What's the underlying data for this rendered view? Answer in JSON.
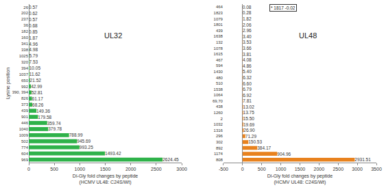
{
  "chart_data": [
    {
      "type": "bar",
      "orientation": "horizontal",
      "title": "UL32",
      "x_label": "Di-Gly fold changes by peptide\n(HCMV UL48: C24S/Wt)",
      "y_label": "Lysine position",
      "categories": [
        "26",
        "202",
        "237",
        "36",
        "182",
        "160",
        "341",
        "338",
        "1025",
        "320",
        "394",
        "1037",
        "650",
        "992",
        "390, 394",
        "826",
        "373",
        "439",
        "901",
        "446",
        "1040",
        "1009",
        "502",
        "774",
        "604",
        "969"
      ],
      "values": [
        0.57,
        0.62,
        0.57,
        0.68,
        0.85,
        1.87,
        4.96,
        4.98,
        5.79,
        7.53,
        10.05,
        11.62,
        21.52,
        42.99,
        52.81,
        61.17,
        68.26,
        149.36,
        179.58,
        359.74,
        379.78,
        788.99,
        945.69,
        993.25,
        1493.42,
        2624.45
      ],
      "value_labels": [
        "0.57",
        "0.62",
        "0.57",
        "0.68",
        "0.85",
        "1.87",
        "4.96",
        "4.98",
        "5.79",
        "7.53",
        "10.05",
        "11.62",
        "21.52",
        "42.99",
        "52.81",
        "61.17",
        "68.26",
        "149.36",
        "179.58",
        "359.74",
        "379.78",
        "788.99",
        "945.69",
        "993.25",
        "1493.42",
        "2624.45"
      ],
      "color": "#2fb24a",
      "xlim": [
        0,
        3000
      ],
      "xticks": [
        0,
        500,
        1000,
        1500,
        2000,
        2500,
        3000
      ],
      "data_labels": true,
      "grid": false
    },
    {
      "type": "bar",
      "orientation": "horizontal",
      "title": "UL48",
      "x_label": "Di-Gly fold changes by peptide\n(HCMV UL48: C24S/Wt)",
      "annotations": [
        "* 1817 -0.02"
      ],
      "categories": [
        "464",
        "1823",
        "1079",
        "1801",
        "439",
        "1638",
        "132",
        "1078",
        "1615",
        "467",
        "594",
        "1430",
        "480",
        "510",
        "1538",
        "1064",
        "69,70",
        "438",
        "1260",
        "2",
        "1032",
        "1316",
        "296",
        "302",
        "892",
        "1174",
        "808"
      ],
      "values": [
        0.08,
        0.28,
        1.82,
        2.06,
        2.96,
        3.4,
        3.53,
        3.66,
        3.81,
        4.08,
        4.86,
        5.4,
        6.32,
        6.6,
        6.79,
        6.92,
        7.81,
        13.02,
        13.75,
        15.5,
        19.69,
        26.9,
        71.29,
        150.53,
        384.17,
        904.96,
        2931.51
      ],
      "value_labels": [
        "0.08",
        "0.28",
        "1.82",
        "2.06",
        "2.96",
        "3.40",
        "3.53",
        "3.66",
        "3.81",
        "4.08",
        "4.86",
        "5.40",
        "6.32",
        "6.60",
        "6.79",
        "6.92",
        "7.81",
        "13.02",
        "13.75",
        "15.50",
        "19.69",
        "26.90",
        "71.29",
        "150.53",
        "384.17",
        "904.96",
        "2931.51"
      ],
      "color": "#e8821e",
      "xlim": [
        -500,
        3500
      ],
      "xticks": [
        -500,
        0,
        500,
        1000,
        1500,
        2000,
        2500,
        3000,
        3500
      ],
      "data_labels": true,
      "grid": false
    }
  ]
}
